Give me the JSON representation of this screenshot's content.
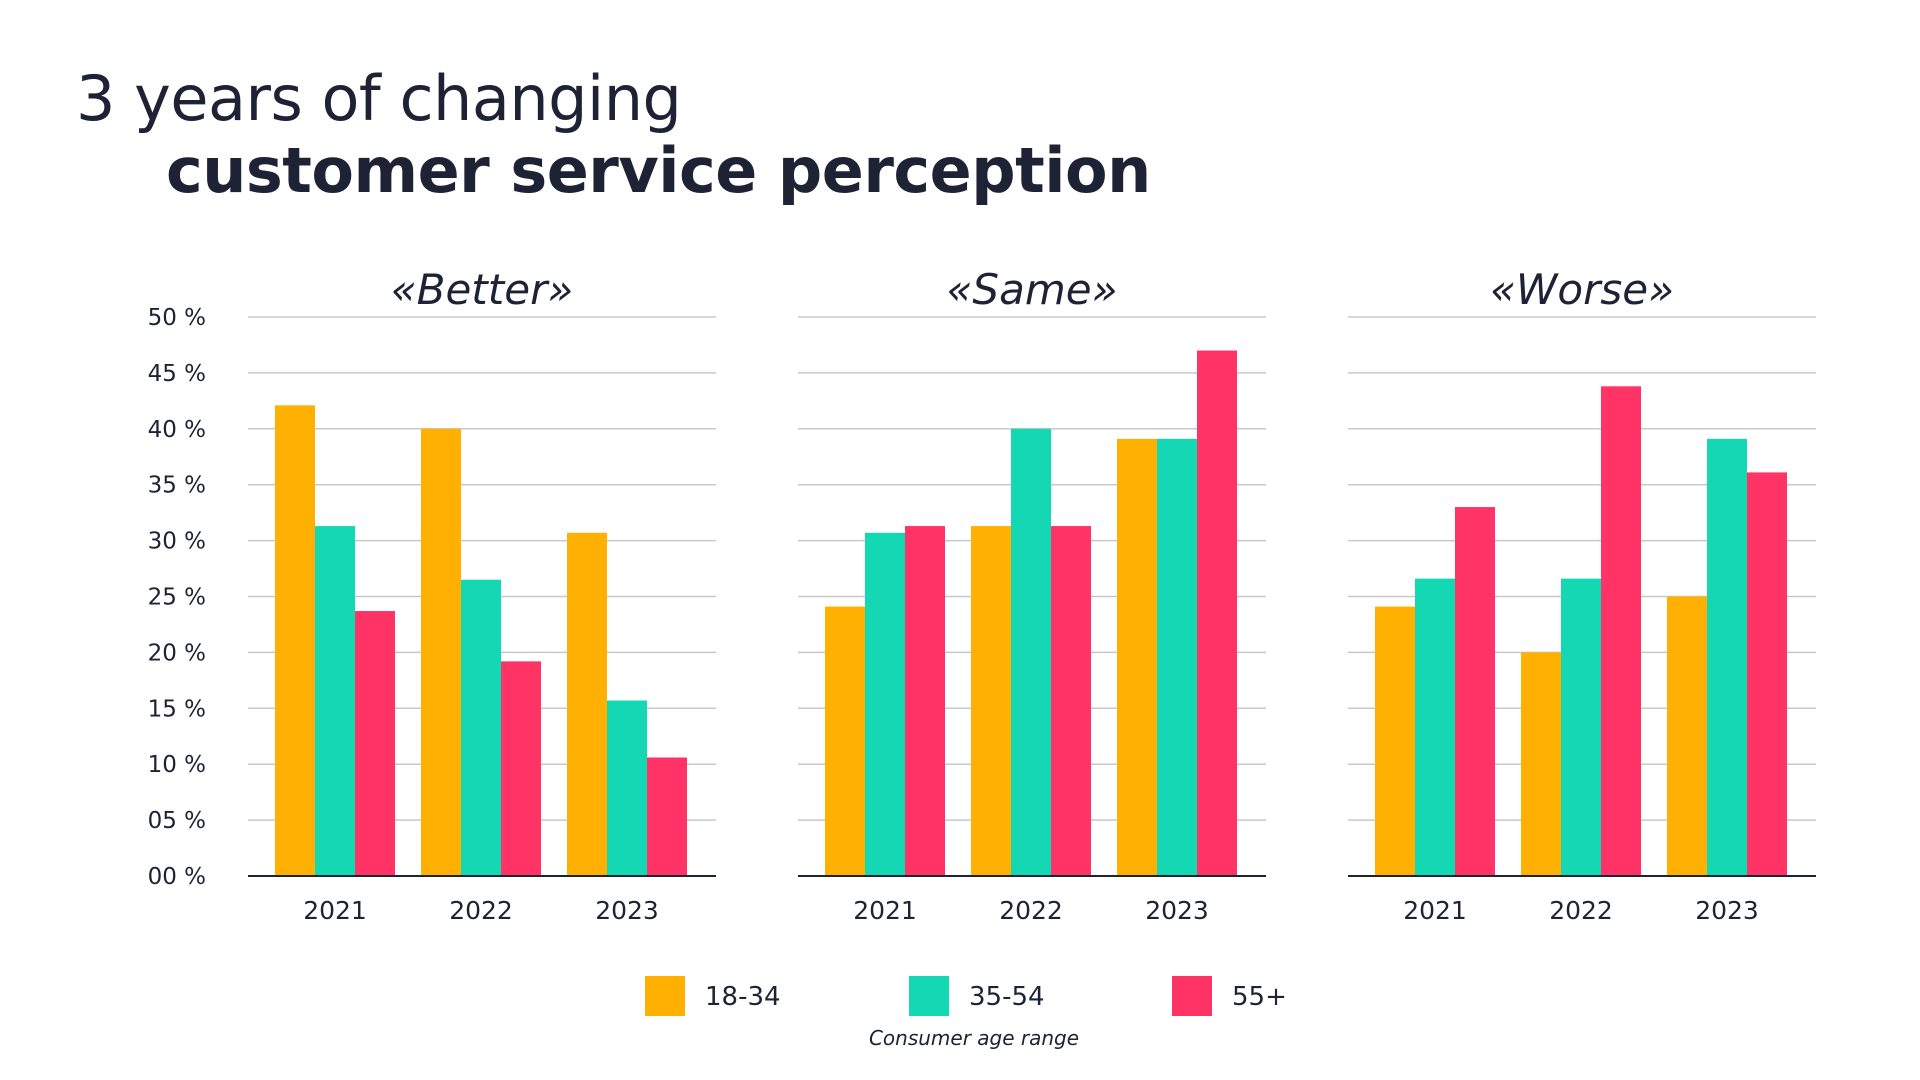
{
  "title": {
    "line1": "3 years of changing",
    "line2": "customer service perception"
  },
  "chart_data": {
    "type": "bar",
    "categories": [
      "2021",
      "2022",
      "2023"
    ],
    "ylim": [
      0,
      50
    ],
    "yticks": [
      "00 %",
      "05 %",
      "10 %",
      "15 %",
      "20 %",
      "25 %",
      "30 %",
      "35 %",
      "40 %",
      "45 %",
      "50 %"
    ],
    "grid": true,
    "legend_placement": "bottom",
    "legend_title": "Consumer age range",
    "series_names": [
      "18-34",
      "35-54",
      "55+"
    ],
    "colors": {
      "18-34": "#FFB000",
      "35-54": "#14D8B4",
      "55+": "#FF3366"
    },
    "panels": [
      {
        "title": "«Better»",
        "series": [
          {
            "name": "18-34",
            "values": [
              42.1,
              40.0,
              30.7
            ]
          },
          {
            "name": "35-54",
            "values": [
              31.3,
              26.5,
              15.7
            ]
          },
          {
            "name": "55+",
            "values": [
              23.7,
              19.2,
              10.6
            ]
          }
        ]
      },
      {
        "title": "«Same»",
        "series": [
          {
            "name": "18-34",
            "values": [
              24.1,
              31.3,
              39.1
            ]
          },
          {
            "name": "35-54",
            "values": [
              30.7,
              40.0,
              39.1
            ]
          },
          {
            "name": "55+",
            "values": [
              31.3,
              31.3,
              47.0
            ]
          }
        ]
      },
      {
        "title": "«Worse»",
        "series": [
          {
            "name": "18-34",
            "values": [
              24.1,
              20.0,
              25.0
            ]
          },
          {
            "name": "35-54",
            "values": [
              26.6,
              26.6,
              39.1
            ]
          },
          {
            "name": "55+",
            "values": [
              33.0,
              43.8,
              36.1
            ]
          }
        ]
      }
    ]
  }
}
